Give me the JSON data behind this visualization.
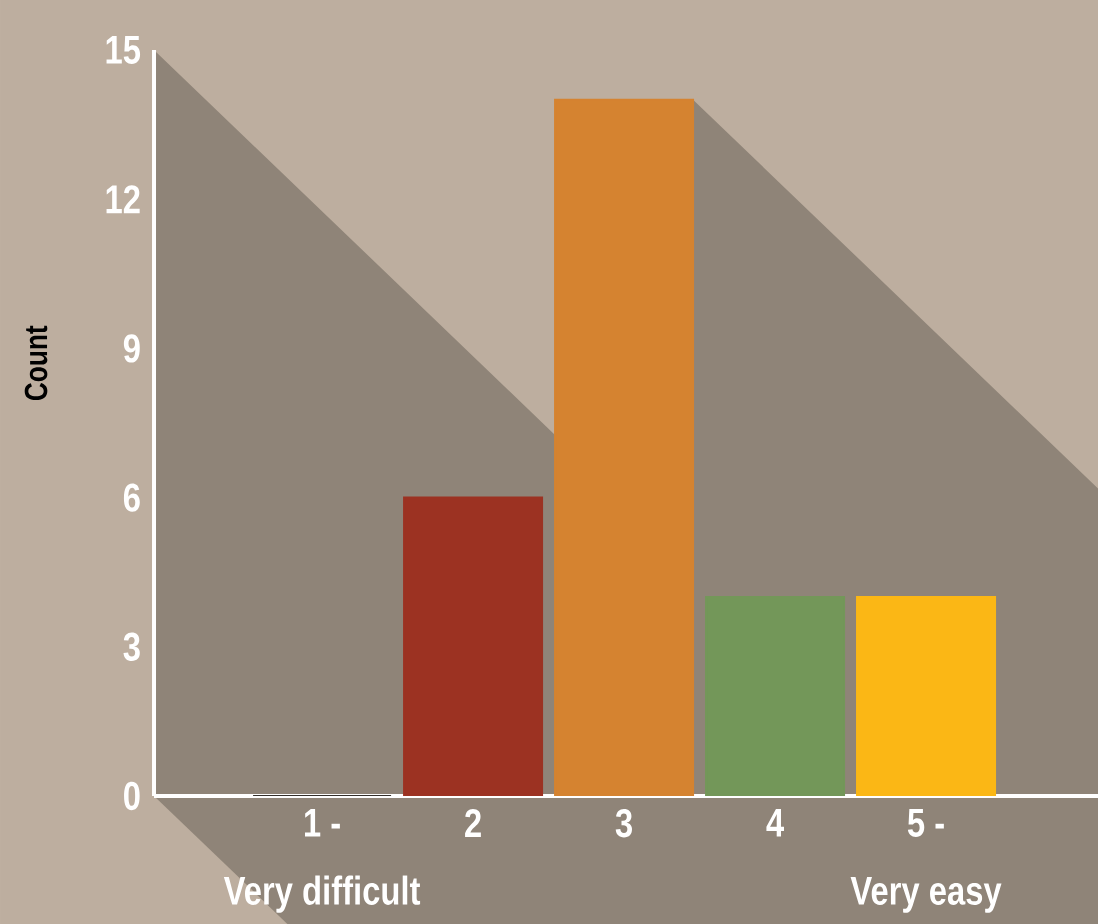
{
  "chart_data": {
    "type": "bar",
    "ylabel": "Count",
    "categories": [
      "1 -\nVery difficult",
      "2",
      "3",
      "4",
      "5 -\nVery easy"
    ],
    "values": [
      0,
      6,
      14,
      4,
      4
    ],
    "colors": [
      "#35302c",
      "#9c3222",
      "#d58330",
      "#739759",
      "#fbb715"
    ],
    "ylim": [
      0,
      15
    ],
    "yticks": [
      0,
      3,
      6,
      9,
      12,
      15
    ]
  }
}
